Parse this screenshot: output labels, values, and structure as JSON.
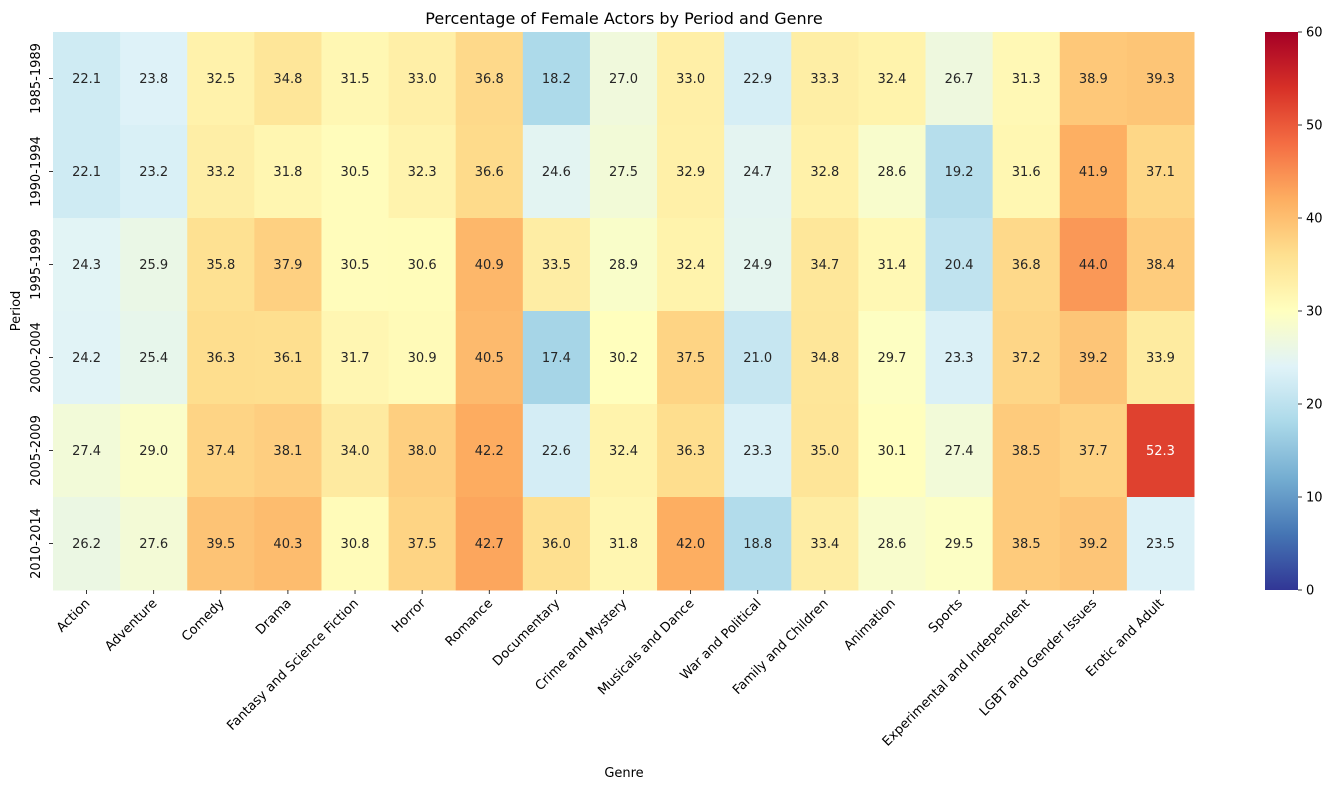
{
  "chart_data": {
    "type": "heatmap",
    "title": "Percentage of Female Actors by Period and Genre",
    "xlabel": "Genre",
    "ylabel": "Period",
    "x_categories": [
      "Action",
      "Adventure",
      "Comedy",
      "Drama",
      "Fantasy and Science Fiction",
      "Horror",
      "Romance",
      "Documentary",
      "Crime and Mystery",
      "Musicals and Dance",
      "War and Political",
      "Family and Children",
      "Animation",
      "Sports",
      "Experimental and Independent",
      "LGBT and Gender Issues",
      "Erotic and Adult"
    ],
    "y_categories": [
      "1985-1989",
      "1990-1994",
      "1995-1999",
      "2000-2004",
      "2005-2009",
      "2010-2014"
    ],
    "values": [
      [
        22.1,
        23.8,
        32.5,
        34.8,
        31.5,
        33.0,
        36.8,
        18.2,
        27.0,
        33.0,
        22.9,
        33.3,
        32.4,
        26.7,
        31.3,
        38.9,
        39.3
      ],
      [
        22.1,
        23.2,
        33.2,
        31.8,
        30.5,
        32.3,
        36.6,
        24.6,
        27.5,
        32.9,
        24.7,
        32.8,
        28.6,
        19.2,
        31.6,
        41.9,
        37.1
      ],
      [
        24.3,
        25.9,
        35.8,
        37.9,
        30.5,
        30.6,
        40.9,
        33.5,
        28.9,
        32.4,
        24.9,
        34.7,
        31.4,
        20.4,
        36.8,
        44.0,
        38.4
      ],
      [
        24.2,
        25.4,
        36.3,
        36.1,
        31.7,
        30.9,
        40.5,
        17.4,
        30.2,
        37.5,
        21.0,
        34.8,
        29.7,
        23.3,
        37.2,
        39.2,
        33.9
      ],
      [
        27.4,
        29.0,
        37.4,
        38.1,
        34.0,
        38.0,
        42.2,
        22.6,
        32.4,
        36.3,
        23.3,
        35.0,
        30.1,
        27.4,
        38.5,
        37.7,
        52.3
      ],
      [
        26.2,
        27.6,
        39.5,
        40.3,
        30.8,
        37.5,
        42.7,
        36.0,
        31.8,
        42.0,
        18.8,
        33.4,
        28.6,
        29.5,
        38.5,
        39.2,
        23.5
      ]
    ],
    "value_format": "0.1f",
    "colormap": "RdYlBu_r",
    "vmin": 0,
    "vmax": 60,
    "colorbar_ticks": [
      0,
      10,
      20,
      30,
      40,
      50,
      60
    ],
    "colorbar_labels": [
      "0",
      "10",
      "20",
      "30",
      "40",
      "50",
      "60"
    ]
  }
}
